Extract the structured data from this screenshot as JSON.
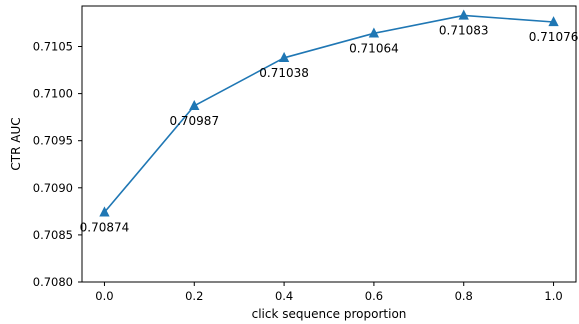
{
  "chart_data": {
    "type": "line",
    "title": "",
    "xlabel": "click sequence proportion",
    "ylabel": "CTR AUC",
    "xlim": [
      -0.05,
      1.05
    ],
    "ylim": [
      0.708,
      0.71093
    ],
    "xticks": [
      0.0,
      0.2,
      0.4,
      0.6,
      0.8,
      1.0
    ],
    "xtick_labels": [
      "0.0",
      "0.2",
      "0.4",
      "0.6",
      "0.8",
      "1.0"
    ],
    "yticks": [
      0.708,
      0.7085,
      0.709,
      0.7095,
      0.71,
      0.7105
    ],
    "ytick_labels": [
      "0.7080",
      "0.7085",
      "0.7090",
      "0.7095",
      "0.7100",
      "0.7105"
    ],
    "grid": false,
    "legend": "none",
    "series": [
      {
        "color": "#1f77b4",
        "marker": "triangle-up",
        "x": [
          0.0,
          0.2,
          0.4,
          0.6,
          0.8,
          1.0
        ],
        "values": [
          0.70874,
          0.70987,
          0.71038,
          0.71064,
          0.71083,
          0.71076
        ],
        "labels": [
          "0.70874",
          "0.70987",
          "0.71038",
          "0.71064",
          "0.71083",
          "0.71076"
        ]
      }
    ]
  }
}
